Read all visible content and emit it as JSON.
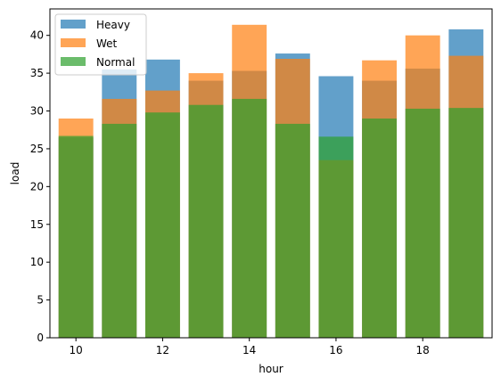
{
  "chart_data": {
    "type": "bar",
    "xlabel": "hour",
    "ylabel": "load",
    "x": [
      10,
      11,
      12,
      13,
      14,
      15,
      16,
      17,
      18,
      19
    ],
    "xlim": [
      9.4,
      19.6
    ],
    "ylim": [
      0,
      43.5
    ],
    "xticks": [
      10,
      12,
      14,
      16,
      18
    ],
    "yticks": [
      0,
      5,
      10,
      15,
      20,
      25,
      30,
      35,
      40
    ],
    "legend_position": "top-left",
    "series": [
      {
        "name": "Heavy",
        "color": "#1f77b4",
        "values": [
          26.5,
          35.5,
          36.8,
          34.0,
          35.3,
          37.6,
          34.6,
          34.0,
          35.6,
          40.8
        ]
      },
      {
        "name": "Wet",
        "color": "#ff7f0e",
        "values": [
          29.0,
          31.6,
          32.7,
          35.0,
          41.4,
          36.9,
          23.5,
          36.7,
          40.0,
          37.3
        ]
      },
      {
        "name": "Normal",
        "color": "#2ca02c",
        "values": [
          26.7,
          28.3,
          29.8,
          30.8,
          31.6,
          28.3,
          26.6,
          29.0,
          30.3,
          30.4
        ]
      }
    ]
  }
}
